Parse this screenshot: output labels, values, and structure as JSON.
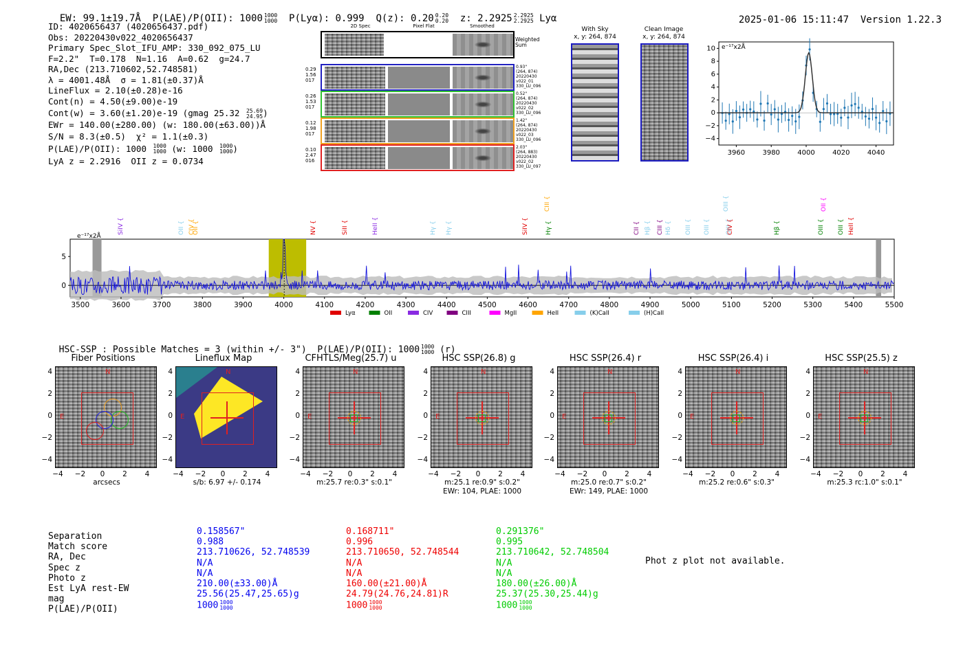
{
  "header": {
    "ew": "EW: 99.1±19.7Å",
    "plae_label": "P(LAE)/P(OII): 1000",
    "plae_hi": "1000",
    "plae_lo": "1000",
    "plya": "P(Lyα): 0.999",
    "qz_label": "Q(z): 0.20",
    "qz_hi": "0.20",
    "qz_lo": "0.20",
    "z_label": "z: 2.2925",
    "z_hi": "2.2925",
    "z_lo": "2.2925",
    "z_suffix": "Lyα",
    "timestamp": "2025-01-06 15:11:47",
    "version": "Version 1.22.3"
  },
  "info": {
    "lines": [
      "ID: 4020656437 (4020656437.pdf)",
      "Obs: 20220430v022_4020656437",
      "Primary Spec_Slot_IFU_AMP: 330_092_075_LU",
      "F=2.2\"  T=0.178  N=1.16  A=0.62  g=24.7",
      "RA,Dec (213.710602,52.748581)",
      "λ = 4001.48Å  σ = 1.81(±0.37)Å",
      "LineFlux = 2.10(±0.28)e-16",
      "Cont(n) = 4.50(±9.00)e-19"
    ],
    "contw": "Cont(w) = 3.60(±1.20)e-19 (gmag 25.32",
    "contw_hi": "25.69",
    "contw_lo": "24.95",
    "contw_end": ")",
    "ewr": "EWr = 140.00(±280.00) (w: 180.00(±63.00))Å",
    "sn": "S/N = 8.3(±0.5)  χ² = 1.1(±0.3)",
    "plae": "P(LAE)/P(OII): 1000",
    "plae_hi": "1000",
    "plae_lo": "1000",
    "plae_w": "(w: 1000",
    "plae_w_hi": "1000",
    "plae_w_lo": "1000",
    "plae_w_end": ")",
    "lya": "LyA z = 2.2916  OII z = 0.0734"
  },
  "spec2d": {
    "col_headers": [
      "2D Spec",
      "Pixel Flat",
      "Smoothed"
    ],
    "weighted_sum": "Weighted Sum",
    "rows": [
      {
        "left": [
          "0.29",
          "1.56",
          "017"
        ],
        "right": [
          "0.93\"",
          "(264, 874)",
          "20220430",
          "v022_01",
          "330_LU_096"
        ],
        "color": "#2020c0"
      },
      {
        "left": [
          "0.26",
          "1.53",
          "017"
        ],
        "right": [
          "0.52\"",
          "(264, 874)",
          "20220430",
          "v022_02",
          "330_LU_096"
        ],
        "color": "#30c030"
      },
      {
        "left": [
          "0.12",
          "1.98",
          "017"
        ],
        "right": [
          "1.42\"",
          "(264, 874)",
          "20220430",
          "v022_03",
          "330_LU_096"
        ],
        "color": "#f0a020"
      },
      {
        "left": [
          "0.10",
          "2.47",
          "016"
        ],
        "right": [
          "2.03\"",
          "(264, 883)",
          "20220430",
          "v022_02",
          "330_LU_097"
        ],
        "color": "#e02020"
      }
    ]
  },
  "cutouts_top": {
    "with_sky": {
      "title": "With Sky",
      "coords": "x, y: 264, 874"
    },
    "clean": {
      "title": "Clean Image",
      "coords": "x, y: 264, 874"
    }
  },
  "zoom_plot": {
    "ylabel": "e⁻¹⁷x2Å",
    "xticks": [
      "3960",
      "3980",
      "4000",
      "4020",
      "4040"
    ],
    "yticks": [
      "10",
      "8",
      "6",
      "4",
      "2",
      "0",
      "−2",
      "−4"
    ]
  },
  "full_spec": {
    "ylabel": "e⁻¹⁷x2Å",
    "xticks": [
      "3500",
      "3600",
      "3700",
      "3800",
      "3900",
      "4000",
      "4100",
      "4200",
      "4300",
      "4400",
      "4500",
      "4600",
      "4700",
      "4800",
      "4900",
      "5000",
      "5100",
      "5200",
      "5300",
      "5400",
      "5500"
    ],
    "yticks": [
      "5",
      "0"
    ],
    "legend": [
      {
        "label": "Lyα",
        "color": "#e00000"
      },
      {
        "label": "OII",
        "color": "#008000"
      },
      {
        "label": "CIV",
        "color": "#8a2be2"
      },
      {
        "label": "CIII",
        "color": "#800080"
      },
      {
        "label": "MgII",
        "color": "#ff00ff"
      },
      {
        "label": "HeII",
        "color": "#ffa500"
      },
      {
        "label": "(K)CaII",
        "color": "#87ceeb"
      },
      {
        "label": "(H)CaII",
        "color": "#87ceeb"
      }
    ],
    "line_labels": [
      {
        "t": "SiIV",
        "c": "#8a2be2"
      },
      {
        "t": "OII",
        "c": "#87ceeb"
      },
      {
        "t": "CIV",
        "c": "#ffa500"
      },
      {
        "t": "OII",
        "c": "#ffa500"
      },
      {
        "t": "NV",
        "c": "#e00000"
      },
      {
        "t": "SiII",
        "c": "#e00000"
      },
      {
        "t": "HeII",
        "c": "#8a2be2"
      },
      {
        "t": "Hγ",
        "c": "#87ceeb"
      },
      {
        "t": "Hγ",
        "c": "#87ceeb"
      },
      {
        "t": "SiIV",
        "c": "#e00000"
      },
      {
        "t": "CIII",
        "c": "#ffa500"
      },
      {
        "t": "Hγ",
        "c": "#008000"
      },
      {
        "t": "CII",
        "c": "#800080"
      },
      {
        "t": "Hβ",
        "c": "#87ceeb"
      },
      {
        "t": "CIII",
        "c": "#800080"
      },
      {
        "t": "Hδ",
        "c": "#87ceeb"
      },
      {
        "t": "OIII",
        "c": "#87ceeb"
      },
      {
        "t": "OIII",
        "c": "#87ceeb"
      },
      {
        "t": "OIII",
        "c": "#87ceeb"
      },
      {
        "t": "OIII",
        "c": "#87ceeb"
      },
      {
        "t": "CIV",
        "c": "#e00000"
      },
      {
        "t": "Hβ",
        "c": "#008000"
      },
      {
        "t": "OII",
        "c": "#ff00ff"
      },
      {
        "t": "OIII",
        "c": "#008000"
      },
      {
        "t": "OIII",
        "c": "#008000"
      },
      {
        "t": "HeII",
        "c": "#e00000"
      }
    ]
  },
  "hsc_header": {
    "text": "HSC-SSP : Possible Matches = 3 (within +/- 3\")  P(LAE)/P(OII): 1000",
    "hi": "1000",
    "lo": "1000",
    "suffix": "(r)"
  },
  "cutouts": [
    {
      "title": "Fiber Positions",
      "cap1": "arcsecs",
      "cap2": ""
    },
    {
      "title": "Lineflux Map",
      "cap1": "s/b: 6.97 +/- 0.174",
      "cap2": ""
    },
    {
      "title": "CFHTLS/Meg(25.7) u",
      "cap1": "m:25.7  re:0.3\"  s:0.1\"",
      "cap2": ""
    },
    {
      "title": "HSC SSP(26.8) g",
      "cap1": "m:25.1  re:0.9\"  s:0.2\"",
      "cap2": "EWr: 104, PLAE: 1000"
    },
    {
      "title": "HSC SSP(26.4) r",
      "cap1": "m:25.0  re:0.7\"  s:0.2\"",
      "cap2": "EWr: 149, PLAE: 1000"
    },
    {
      "title": "HSC SSP(26.4) i",
      "cap1": "m:25.2  re:0.6\"  s:0.3\"",
      "cap2": ""
    },
    {
      "title": "HSC SSP(25.5) z",
      "cap1": "m:25.3  rc:1.0\"  s:0.1\"",
      "cap2": ""
    }
  ],
  "cutout_ticks": {
    "y": [
      "4",
      "2",
      "0",
      "−2",
      "−4"
    ],
    "x": [
      "−4",
      "−2",
      "0",
      "2",
      "4"
    ],
    "N": "N",
    "E": "E"
  },
  "bottom_table": {
    "labels": [
      "Separation",
      "Match score",
      "RA, Dec",
      "Spec z",
      "Photo z",
      "Est LyA rest-EW",
      "mag",
      "P(LAE)/P(OII)"
    ],
    "matches": [
      {
        "color": "#0000ee",
        "vals": [
          "0.158567\"",
          "0.988",
          "213.710626, 52.748539",
          "N/A",
          "N/A",
          "210.00(±33.00)Å",
          "25.56(25.47,25.65)g"
        ],
        "plae": "1000",
        "hi": "1000",
        "lo": "1000"
      },
      {
        "color": "#ee0000",
        "vals": [
          "0.168711\"",
          "0.996",
          "213.710650, 52.748544",
          "N/A",
          "N/A",
          "160.00(±21.00)Å",
          "24.79(24.76,24.81)R"
        ],
        "plae": "1000",
        "hi": "1000",
        "lo": "1000"
      },
      {
        "color": "#00cc00",
        "vals": [
          "0.291376\"",
          "0.995",
          "213.710642, 52.748504",
          "N/A",
          "N/A",
          "180.00(±26.00)Å",
          "25.37(25.30,25.44)g"
        ],
        "plae": "1000",
        "hi": "1000",
        "lo": "1000"
      }
    ],
    "photz_note": "Phot z plot not available."
  }
}
